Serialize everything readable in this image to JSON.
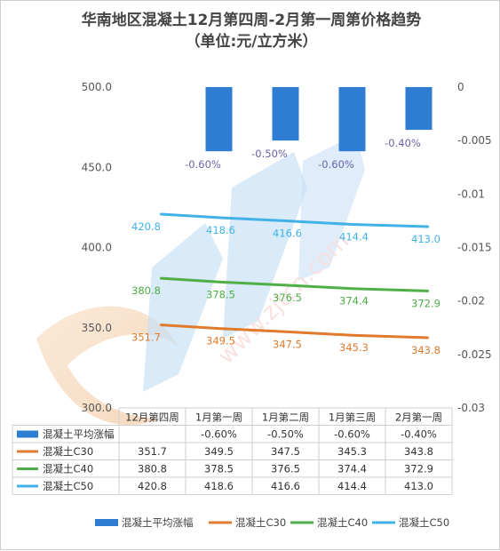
{
  "chart_data": {
    "type": "bar",
    "title": "华南地区混凝土12月第四周-2月第一周第价格趋势",
    "subtitle": "（单位:元/立方米）",
    "categories": [
      "12月第四周",
      "1月第一周",
      "1月第二周",
      "1月第三周",
      "2月第一周"
    ],
    "y_left": {
      "ticks": [
        "500.0",
        "450.0",
        "400.0",
        "350.0",
        "300.0"
      ],
      "ylim": [
        300,
        500
      ]
    },
    "y_right": {
      "ticks": [
        "0",
        "-0.005",
        "-0.01",
        "-0.015",
        "-0.02",
        "-0.025",
        "-0.03"
      ],
      "ylim": [
        -0.03,
        0
      ]
    },
    "grid": false,
    "legend_position": "bottom",
    "watermark_text": "www.zjtcn.com",
    "bar_series": {
      "name": "混凝土平均涨幅",
      "color": "#2e7dd2",
      "label_color": "#6b63a8",
      "values": [
        null,
        -0.006,
        -0.005,
        -0.006,
        -0.004
      ],
      "labels": [
        "",
        "-0.60%",
        "-0.50%",
        "-0.60%",
        "-0.40%"
      ]
    },
    "series": [
      {
        "name": "混凝土C30",
        "color": "#e07a2c",
        "values": [
          351.7,
          349.5,
          347.5,
          345.3,
          343.8
        ],
        "labels": [
          "351.7",
          "349.5",
          "347.5",
          "345.3",
          "343.8"
        ]
      },
      {
        "name": "混凝土C40",
        "color": "#4eaf47",
        "values": [
          380.8,
          378.5,
          376.5,
          374.4,
          372.9
        ],
        "labels": [
          "380.8",
          "378.5",
          "376.5",
          "374.4",
          "372.9"
        ]
      },
      {
        "name": "混凝土C50",
        "color": "#41b1e8",
        "values": [
          420.8,
          418.6,
          416.6,
          414.4,
          413.0
        ],
        "labels": [
          "420.8",
          "418.6",
          "416.6",
          "414.4",
          "413.0"
        ]
      }
    ]
  }
}
